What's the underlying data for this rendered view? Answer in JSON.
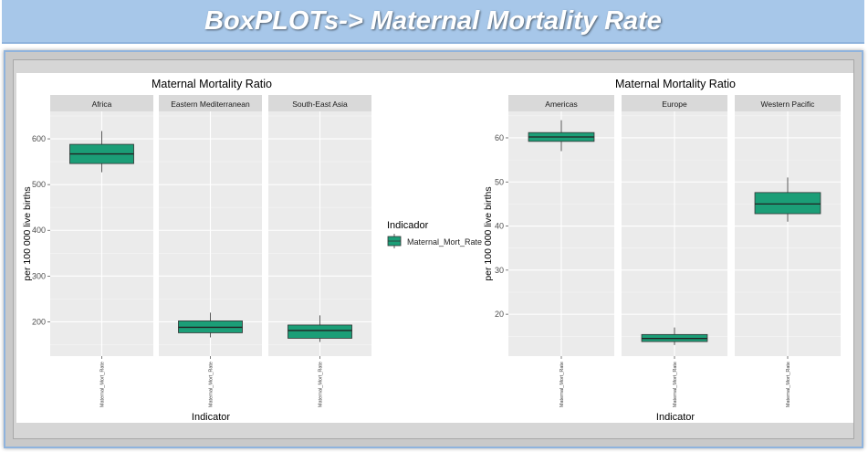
{
  "banner": {
    "title": "BoxPLOTs-> Maternal Mortality Rate"
  },
  "legend": {
    "title": "Indicador",
    "item": "Maternal_Mort_Rate",
    "fill": "#1b9e77"
  },
  "chart_data": [
    {
      "type": "boxplot",
      "title": "Maternal Mortality Ratio",
      "xlabel": "Indicator",
      "ylabel": "per 100 000 live births",
      "ylim": [
        125,
        660
      ],
      "y_ticks": [
        200,
        300,
        400,
        500,
        600
      ],
      "x_tick_label": "Maternal_Mort_Rate",
      "facets": [
        {
          "name": "Africa",
          "min": 527,
          "q1": 546,
          "median": 567,
          "q3": 588,
          "max": 617
        },
        {
          "name": "Eastern Mediterranean",
          "min": 166,
          "q1": 176,
          "median": 188,
          "q3": 202,
          "max": 220
        },
        {
          "name": "South-East Asia",
          "min": 156,
          "q1": 164,
          "median": 181,
          "q3": 193,
          "max": 214
        }
      ]
    },
    {
      "type": "boxplot",
      "title": "Maternal Mortality Ratio",
      "xlabel": "Indicator",
      "ylabel": "per 100 000 live births",
      "ylim": [
        10.5,
        66
      ],
      "y_ticks": [
        20,
        30,
        40,
        50,
        60
      ],
      "x_tick_label": "Maternal_Mort_Rate",
      "facets": [
        {
          "name": "Americas",
          "min": 57,
          "q1": 59.2,
          "median": 60.2,
          "q3": 61.2,
          "max": 64
        },
        {
          "name": "Europe",
          "min": 13,
          "q1": 13.8,
          "median": 14.5,
          "q3": 15.4,
          "max": 17
        },
        {
          "name": "Western Pacific",
          "min": 41,
          "q1": 42.8,
          "median": 45,
          "q3": 47.6,
          "max": 51
        }
      ]
    }
  ]
}
